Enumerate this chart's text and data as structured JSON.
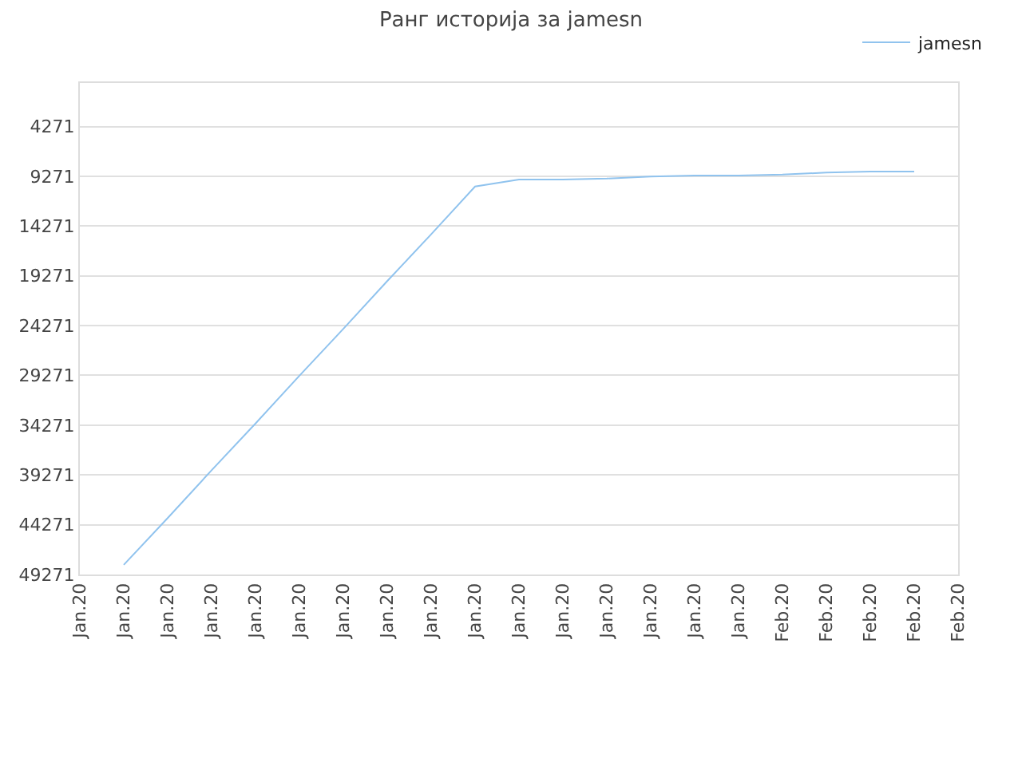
{
  "chart_data": {
    "type": "line",
    "title": "Ранг историја за jamesn",
    "categories": [
      "Jan.20",
      "Jan.20",
      "Jan.20",
      "Jan.20",
      "Jan.20",
      "Jan.20",
      "Jan.20",
      "Jan.20",
      "Jan.20",
      "Jan.20",
      "Jan.20",
      "Jan.20",
      "Jan.20",
      "Jan.20",
      "Jan.20",
      "Jan.20",
      "Feb.20",
      "Feb.20",
      "Feb.20",
      "Feb.20",
      "Feb.20"
    ],
    "ylim": [
      49271,
      -100
    ],
    "yticks": [
      4271,
      9271,
      14271,
      19271,
      24271,
      29271,
      34271,
      39271,
      44271,
      49271
    ],
    "grid": "y",
    "legend": "top right",
    "marker": "none",
    "line_style": "solid",
    "series": [
      {
        "name": "jamesn",
        "color": "#90c3ee",
        "values": [
          null,
          48300,
          43600,
          38800,
          34100,
          29300,
          24600,
          19800,
          15100,
          10300,
          9600,
          9600,
          9500,
          9300,
          9200,
          9200,
          9100,
          8900,
          8800,
          8800,
          null
        ]
      }
    ]
  }
}
